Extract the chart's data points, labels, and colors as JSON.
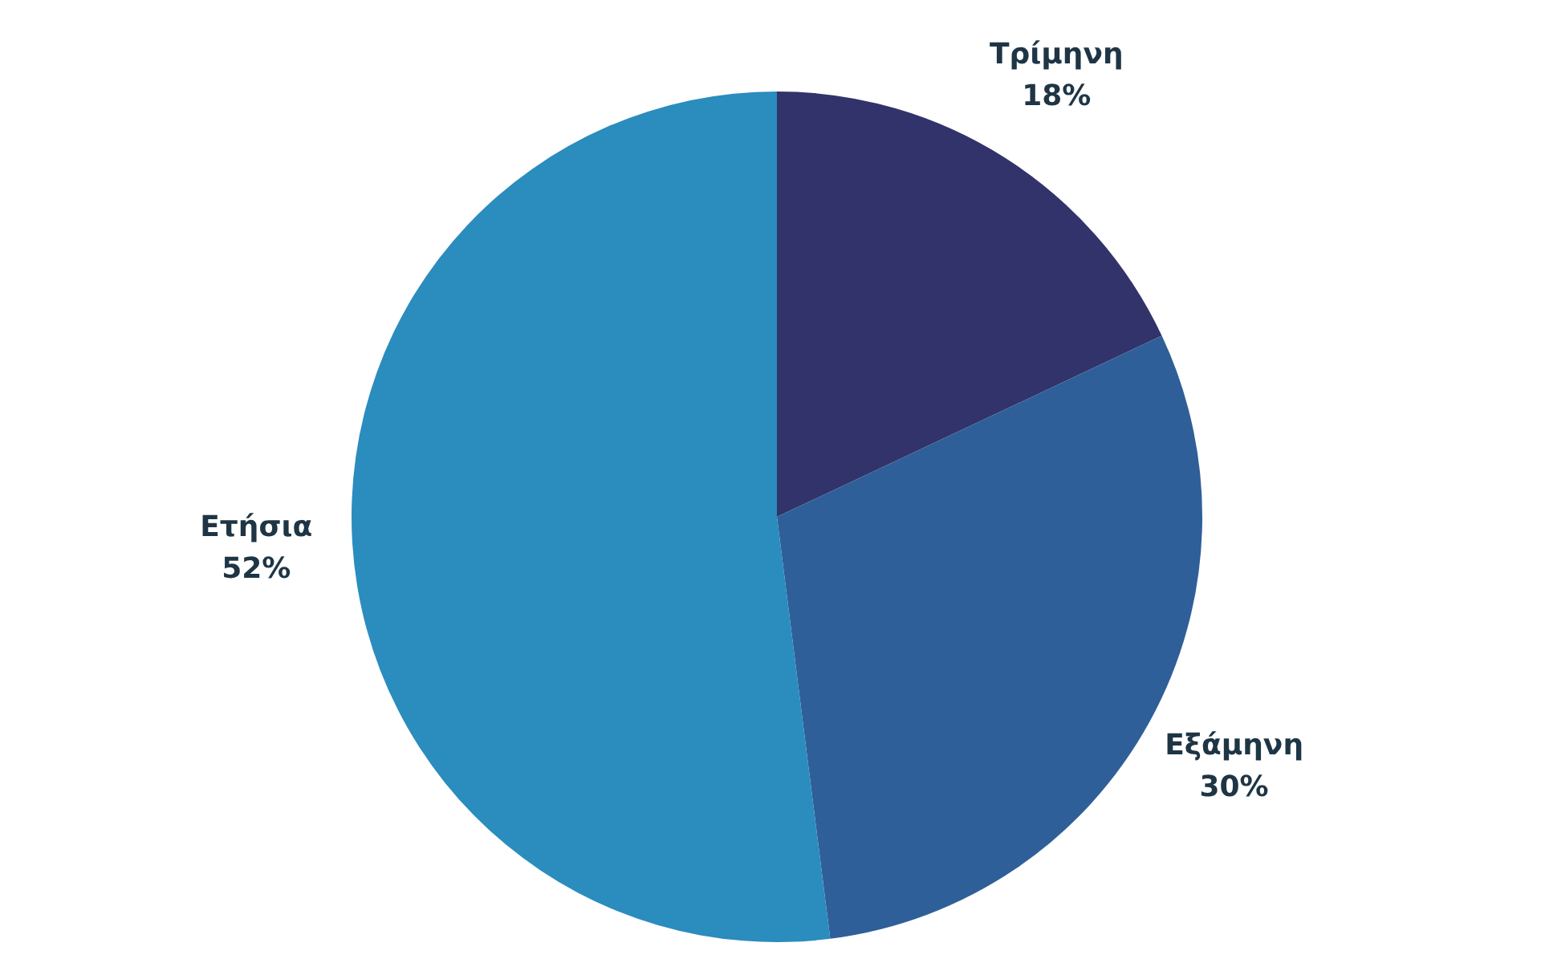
{
  "chart_data": {
    "type": "pie",
    "categories": [
      "Τρίμηνη",
      "Εξάμηνη",
      "Ετήσια"
    ],
    "values": [
      18,
      30,
      52
    ],
    "value_labels": [
      "18%",
      "30%",
      "52%"
    ],
    "colors": [
      "#31336a",
      "#2f5f98",
      "#2b8cbe"
    ]
  }
}
